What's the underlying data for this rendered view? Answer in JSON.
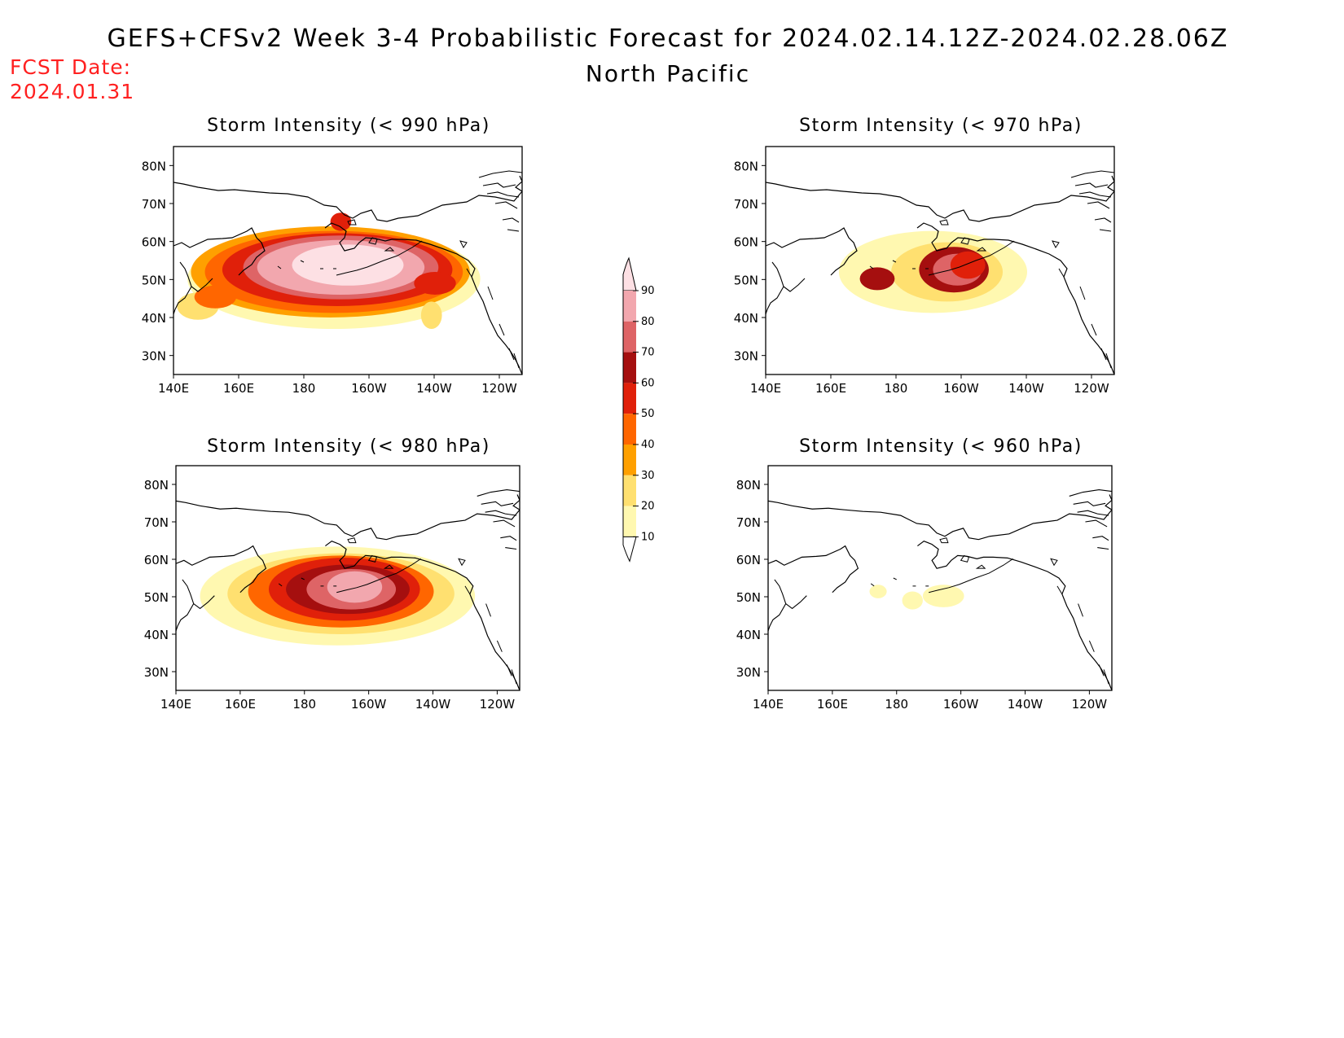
{
  "header": {
    "title": "GEFS+CFSv2 Week 3-4 Probabilistic Forecast for 2024.02.14.12Z-2024.02.28.06Z",
    "subtitle": "North Pacific",
    "fcst_label": "FCST Date:",
    "fcst_date": "2024.01.31"
  },
  "axes": {
    "lat_ticks": [
      "80N",
      "70N",
      "60N",
      "50N",
      "40N",
      "30N"
    ],
    "lon_ticks": [
      "140E",
      "160E",
      "180",
      "160W",
      "140W",
      "120W"
    ]
  },
  "panels": [
    {
      "id": "p990",
      "title": "Storm Intensity (< 990 hPa)"
    },
    {
      "id": "p970",
      "title": "Storm Intensity (< 970 hPa)"
    },
    {
      "id": "p980",
      "title": "Storm Intensity (< 980 hPa)"
    },
    {
      "id": "p960",
      "title": "Storm Intensity (< 960 hPa)"
    }
  ],
  "colorbar": {
    "levels": [
      "90",
      "80",
      "70",
      "60",
      "50",
      "40",
      "30",
      "20",
      "10"
    ],
    "colors": [
      "#fde0e4",
      "#f2a7ae",
      "#de6466",
      "#a50f0f",
      "#e0200a",
      "#ff6600",
      "#ffa000",
      "#ffe070",
      "#fff8b0"
    ]
  }
}
